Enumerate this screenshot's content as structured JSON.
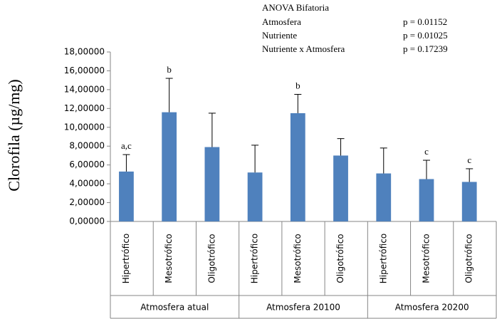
{
  "chart_data": {
    "type": "bar",
    "y_label": "Clorofila (µg/mg)",
    "anova_title": "ANOVA Bifatoria",
    "anova_rows": [
      [
        "Atmosfera",
        "p = 0.01152"
      ],
      [
        "Nutriente",
        "p = 0.01025"
      ],
      [
        "Nutriente x Atmosfera",
        "p = 0.17239"
      ]
    ],
    "categories": [
      "Hipertrófico",
      "Mesotrófico",
      "Oligotrófico",
      "Hipertrófico",
      "Mesotrófico",
      "Oligotrófico",
      "Hipertrófico",
      "Mesotrófico",
      "Oligotrófico"
    ],
    "groups": [
      "Atmosfera atual",
      "Atmosfera 20100",
      "Atmosfera 20200"
    ],
    "values": [
      5.3,
      11.6,
      7.9,
      5.2,
      11.5,
      7.0,
      5.1,
      4.5,
      4.2
    ],
    "errors": [
      1.8,
      3.6,
      3.6,
      2.9,
      2.0,
      1.8,
      2.7,
      2.0,
      1.4
    ],
    "letters": [
      "a,c",
      "b",
      null,
      null,
      "b",
      null,
      null,
      "c",
      "c"
    ],
    "color": "#4f81bd",
    "ylim": [
      0,
      18
    ],
    "yticks": [
      {
        "value": 0,
        "label": "0,00000"
      },
      {
        "value": 2,
        "label": "2,00000"
      },
      {
        "value": 4,
        "label": "4,00000"
      },
      {
        "value": 6,
        "label": "6,00000"
      },
      {
        "value": 8,
        "label": "8,00000"
      },
      {
        "value": 10,
        "label": "10,00000"
      },
      {
        "value": 12,
        "label": "12,00000"
      },
      {
        "value": 14,
        "label": "14,00000"
      },
      {
        "value": 16,
        "label": "16,00000"
      },
      {
        "value": 18,
        "label": "18,00000"
      }
    ],
    "grid": false
  }
}
